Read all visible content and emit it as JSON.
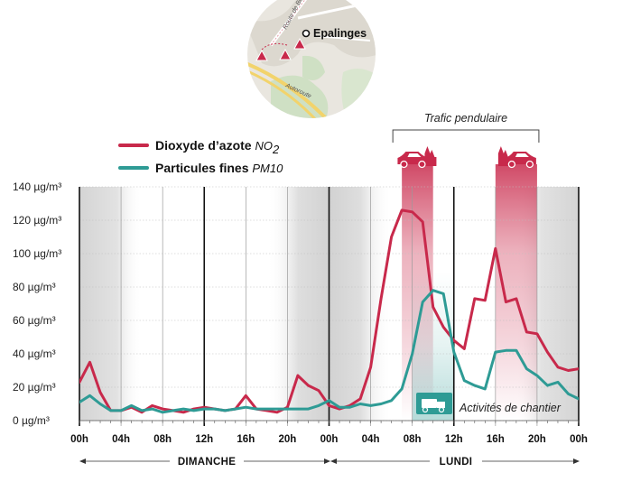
{
  "chart_data": {
    "type": "line",
    "x": [
      0,
      1,
      2,
      3,
      4,
      5,
      6,
      7,
      8,
      9,
      10,
      11,
      12,
      13,
      14,
      15,
      16,
      17,
      18,
      19,
      20,
      21,
      22,
      23,
      24,
      25,
      26,
      27,
      28,
      29,
      30,
      31,
      32,
      33,
      34,
      35,
      36,
      37,
      38,
      39,
      40,
      41,
      42,
      43,
      44,
      45,
      46,
      47,
      48
    ],
    "series": [
      {
        "name": "Dioxyde d’azote",
        "name_sub": "NO",
        "name_sub2": "2",
        "color": "#c8294b",
        "values": [
          23,
          35,
          17,
          6,
          6,
          8,
          5,
          9,
          7,
          6,
          5,
          7,
          8,
          7,
          6,
          7,
          15,
          7,
          6,
          5,
          8,
          27,
          21,
          18,
          9,
          7,
          9,
          13,
          32,
          73,
          110,
          126,
          125,
          119,
          68,
          56,
          48,
          43,
          73,
          72,
          103,
          71,
          73,
          53,
          52,
          41,
          32,
          30,
          31
        ]
      },
      {
        "name": "Particules fines",
        "name_sub": "PM10",
        "color": "#2e9b95",
        "values": [
          11,
          15,
          10,
          6,
          6,
          9,
          6,
          7,
          5,
          6,
          7,
          6,
          7,
          7,
          6,
          7,
          8,
          7,
          7,
          7,
          7,
          7,
          7,
          9,
          12,
          8,
          8,
          10,
          9,
          10,
          12,
          19,
          40,
          71,
          78,
          76,
          41,
          24,
          21,
          19,
          41,
          42,
          42,
          31,
          27,
          21,
          23,
          16,
          13
        ]
      }
    ],
    "ylim": [
      0,
      140
    ],
    "yticks": [
      0,
      20,
      40,
      60,
      80,
      100,
      120,
      140
    ],
    "ytick_labels": [
      "0 µg/m³",
      "20 µg/m³",
      "40 µg/m³",
      "60 µg/m³",
      "80 µg/m³",
      "100 µg/m³",
      "120 µg/m³",
      "140 µg/m³"
    ],
    "xticks": [
      0,
      4,
      8,
      12,
      16,
      20,
      24,
      28,
      32,
      36,
      40,
      44,
      48
    ],
    "xtick_labels": [
      "00h",
      "04h",
      "08h",
      "12h",
      "16h",
      "20h",
      "00h",
      "04h",
      "08h",
      "12h",
      "16h",
      "20h",
      "00h"
    ],
    "days": [
      "DIMANCHE",
      "LUNDI"
    ],
    "night_shading": [
      [
        0,
        6
      ],
      [
        18,
        30
      ],
      [
        42,
        48
      ]
    ],
    "rush_hours": [
      [
        31,
        34
      ],
      [
        40,
        44
      ]
    ],
    "annotations": {
      "rush": "Trafic pendulaire",
      "works": "Activités de chantier",
      "works_range": [
        32,
        36
      ]
    },
    "grid": true,
    "legend_position": "top-left"
  },
  "map": {
    "place": "Epalinges",
    "road1": "Route de Berne",
    "road2": "Autoroute"
  }
}
